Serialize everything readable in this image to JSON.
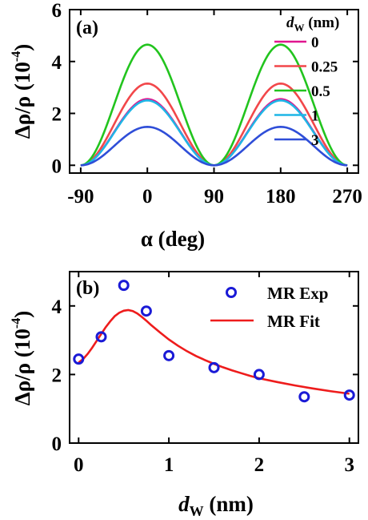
{
  "chart_data": [
    {
      "panel_label": "(a)",
      "type": "line",
      "xlabel": "α (deg)",
      "ylabel_main": "Δρ/ρ (10",
      "ylabel_exp": "-4",
      "ylabel_close": ")",
      "xlim": [
        -105,
        285
      ],
      "ylim": [
        -0.3,
        6
      ],
      "xticks": [
        -90,
        0,
        90,
        180,
        270
      ],
      "yticks": [
        0,
        2,
        4,
        6
      ],
      "legend_title_main": "d",
      "legend_title_sub": "W",
      "legend_title_unit": " (nm)",
      "legend_position": "top-right",
      "series": [
        {
          "name": "0",
          "color": "#e0168f",
          "amplitude": 2.55
        },
        {
          "name": "0.25",
          "color": "#f2474a",
          "amplitude": 3.15
        },
        {
          "name": "0.5",
          "color": "#22c41e",
          "amplitude": 4.65
        },
        {
          "name": "1",
          "color": "#1fb5e6",
          "amplitude": 2.5
        },
        {
          "name": "3",
          "color": "#2f4ed8",
          "amplitude": 1.48
        }
      ],
      "x_range_plotted": [
        -90,
        270
      ],
      "baseline": 0
    },
    {
      "panel_label": "(b)",
      "type": "scatter",
      "xlabel_main": "d",
      "xlabel_sub": "W",
      "xlabel_unit": " (nm)",
      "ylabel_main": "Δρ/ρ (10",
      "ylabel_exp": "-4",
      "ylabel_close": ")",
      "xlim": [
        -0.1,
        3.1
      ],
      "ylim": [
        0,
        5
      ],
      "xticks": [
        0,
        1,
        2,
        3
      ],
      "yticks": [
        0,
        2,
        4
      ],
      "legend_position": "top-right",
      "series": [
        {
          "name": "MR Exp",
          "color": "#1a1ad6",
          "x": [
            0,
            0.25,
            0.5,
            0.75,
            1,
            1.5,
            2,
            2.5,
            3
          ],
          "y": [
            2.45,
            3.1,
            4.6,
            3.85,
            2.55,
            2.2,
            2.0,
            1.35,
            1.4
          ]
        },
        {
          "name": "MR Fit",
          "color": "#ee1c1c",
          "x": [
            0,
            0.05,
            0.1,
            0.15,
            0.2,
            0.25,
            0.3,
            0.35,
            0.4,
            0.45,
            0.5,
            0.55,
            0.6,
            0.65,
            0.7,
            0.75,
            0.8,
            0.9,
            1.0,
            1.1,
            1.2,
            1.3,
            1.4,
            1.5,
            1.6,
            1.7,
            1.8,
            1.9,
            2.0,
            2.2,
            2.4,
            2.6,
            2.8,
            3.0
          ],
          "y": [
            2.35,
            2.45,
            2.6,
            2.78,
            2.98,
            3.18,
            3.38,
            3.55,
            3.7,
            3.8,
            3.86,
            3.88,
            3.85,
            3.78,
            3.68,
            3.57,
            3.45,
            3.23,
            3.02,
            2.84,
            2.68,
            2.54,
            2.42,
            2.31,
            2.21,
            2.12,
            2.04,
            1.96,
            1.89,
            1.78,
            1.68,
            1.59,
            1.51,
            1.44
          ]
        }
      ]
    }
  ]
}
